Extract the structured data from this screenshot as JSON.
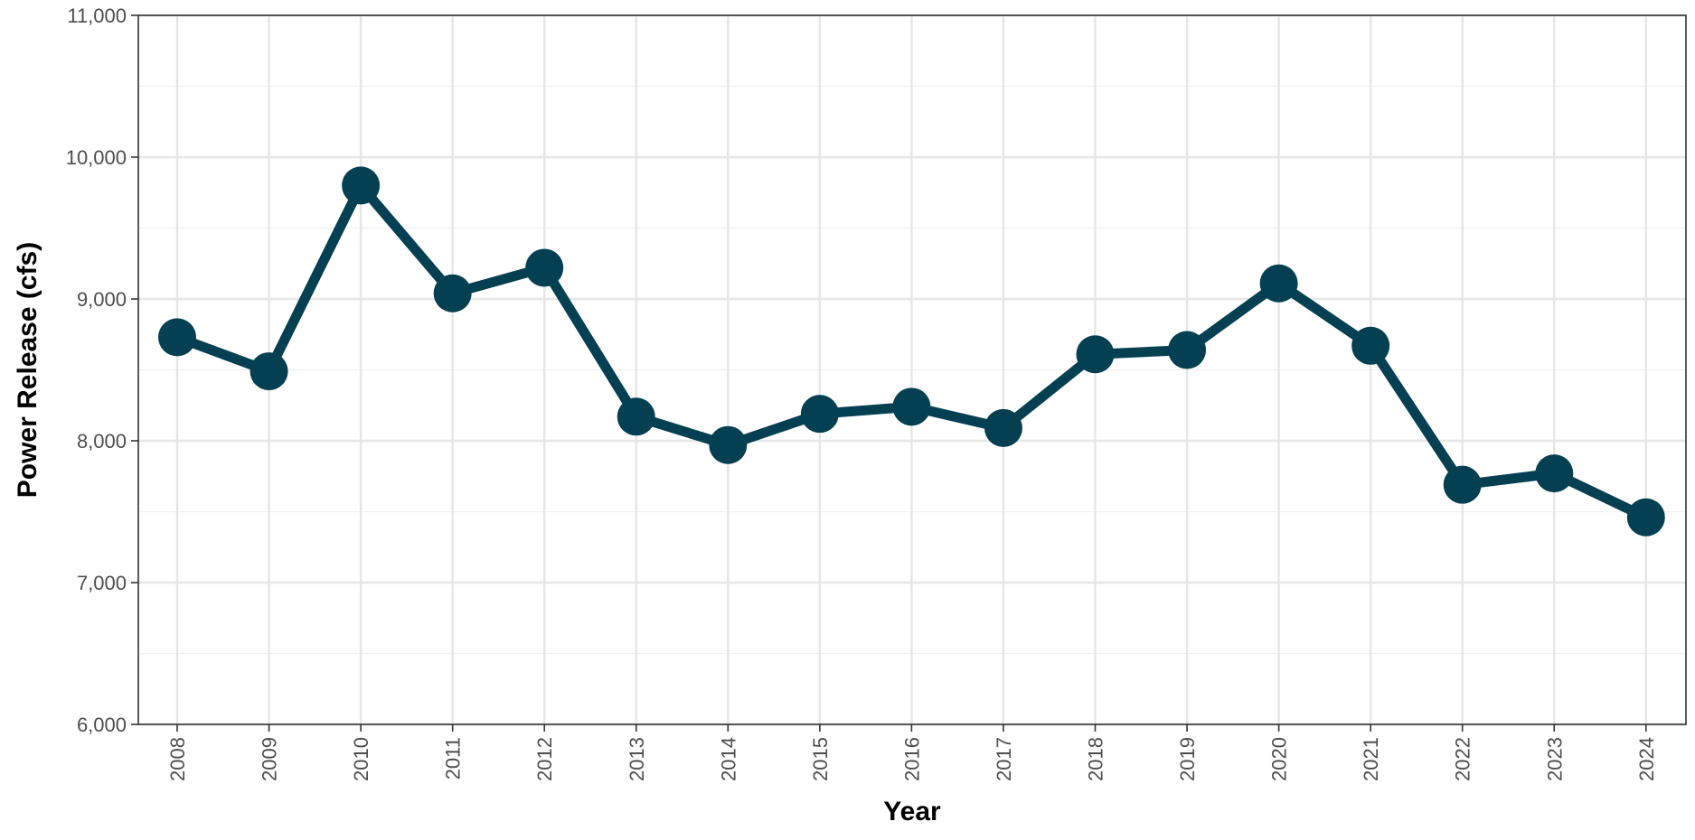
{
  "chart_data": {
    "type": "line",
    "title": "",
    "xlabel": "Year",
    "ylabel": "Power Release (cfs)",
    "ylim": [
      6000,
      11000
    ],
    "y_ticks": [
      6000,
      7000,
      8000,
      9000,
      10000,
      11000
    ],
    "y_tick_labels": [
      "6,000",
      "7,000",
      "8,000",
      "9,000",
      "10,000",
      "11,000"
    ],
    "x": [
      "2008",
      "2009",
      "2010",
      "2011",
      "2012",
      "2013",
      "2014",
      "2015",
      "2016",
      "2017",
      "2018",
      "2019",
      "2020",
      "2021",
      "2022",
      "2023",
      "2024"
    ],
    "values": [
      8730,
      8490,
      9800,
      9040,
      9220,
      8170,
      7970,
      8190,
      8240,
      8090,
      8610,
      8640,
      9110,
      8670,
      7690,
      7770,
      7460
    ],
    "grid": true,
    "line_color": "#043f52",
    "point_color": "#043f52",
    "panel_border_color": "#333333"
  }
}
